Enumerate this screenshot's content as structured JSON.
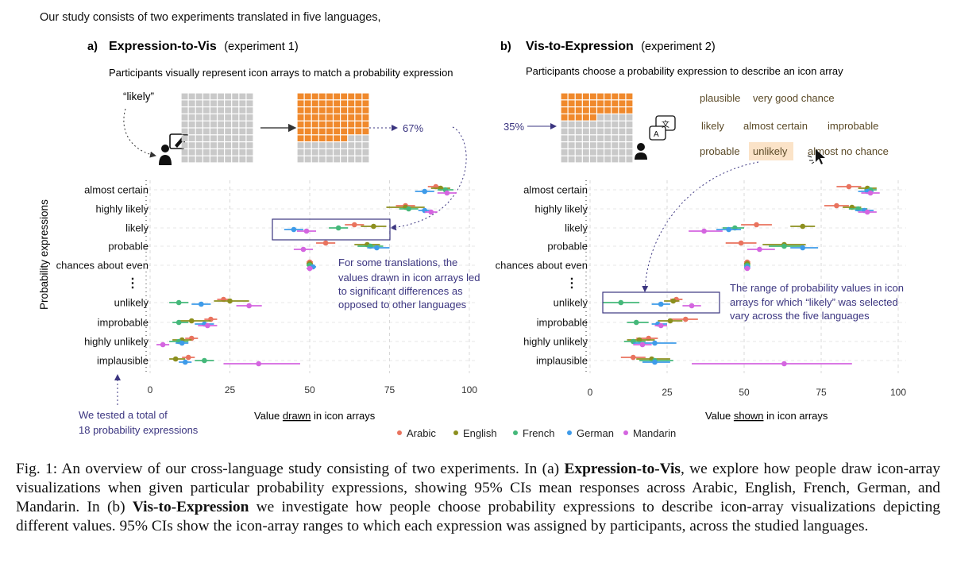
{
  "intro": "Our study consists of two experiments translated in five languages,",
  "colors": {
    "Arabic": "#e9735e",
    "English": "#8c8f1e",
    "French": "#45b87a",
    "German": "#3e9be9",
    "Mandarin": "#d465e0",
    "annotation": "#3b3580",
    "orange": "#f0892c",
    "gray": "#c9c9c9"
  },
  "panelA": {
    "letter": "a)",
    "title": "Expression-to-Vis",
    "subtitle": "(experiment 1)",
    "description": "Participants visually represent icon arrays to match a probability expression",
    "prompt": "“likely”",
    "result": "67%",
    "note": [
      "For some translations, the",
      "values drawn in icon arrays led",
      "to significant differences as",
      "opposed to other languages"
    ],
    "bottom_note": [
      "We tested a total of",
      "18 probability expressions"
    ],
    "xlabel_pre": "Value ",
    "xlabel_u": "drawn",
    "xlabel_post": " in icon arrays"
  },
  "panelB": {
    "letter": "b)",
    "title": "Vis-to-Expression",
    "subtitle": "(experiment 2)",
    "description": "Participants choose a probability expression to describe an icon array",
    "input": "35%",
    "words": [
      "plausible",
      "very good chance",
      "likely",
      "almost certain",
      "improbable",
      "probable",
      "unlikely",
      "almost no chance"
    ],
    "note": [
      "The range of probability values in icon",
      "arrays for which “likely” was selected",
      "vary across the five languages"
    ],
    "xlabel_pre": "Value ",
    "xlabel_u": "shown",
    "xlabel_post": " in icon arrays"
  },
  "ylabel": "Probability expressions",
  "legend": [
    "Arabic",
    "English",
    "French",
    "German",
    "Mandarin"
  ],
  "caption": {
    "p1": "Fig. 1: An overview of our cross-language study consisting of two experiments. In (a) ",
    "b1": "Expression-to-Vis",
    "p2": ", we explore how people draw icon-array visualizations when given particular probability expressions, showing 95% CIs mean responses across Arabic, English, French, German, and Mandarin. In (b) ",
    "b2": "Vis-to-Expression",
    "p3": " we investigate how people choose probability expressions to describe icon-array visualizations depicting different values. 95% CIs show the icon-array ranges to which each expression was assigned by participants, across the studied languages."
  },
  "chart_data": [
    {
      "type": "scatter",
      "title": "Expression-to-Vis",
      "xlabel": "Value drawn in icon arrays",
      "ylabel": "Probability expressions",
      "xlim": [
        0,
        100
      ],
      "xticks": [
        0,
        25,
        50,
        75,
        100
      ],
      "categories": [
        "almost certain",
        "highly likely",
        "likely",
        "probable",
        "chances about even",
        "⋮",
        "unlikely",
        "improbable",
        "highly unlikely",
        "implausible"
      ],
      "series": [
        {
          "name": "Arabic",
          "points": [
            [
              89.5,
              91,
              87
            ],
            [
              80,
              83,
              77
            ],
            [
              64,
              67,
              61
            ],
            [
              55,
              58,
              52
            ],
            [
              50,
              51,
              49
            ],
            null,
            [
              23,
              25,
              21
            ],
            [
              19,
              21,
              17
            ],
            [
              13,
              15,
              11
            ],
            [
              12,
              14,
              10
            ]
          ]
        },
        {
          "name": "English",
          "points": [
            [
              91,
              94,
              88
            ],
            [
              80,
              86,
              74
            ],
            [
              70,
              74,
              66
            ],
            [
              68,
              72,
              64
            ],
            [
              50,
              51,
              49
            ],
            null,
            [
              25,
              31,
              20
            ],
            [
              13,
              19,
              9
            ],
            [
              10,
              13,
              7
            ],
            [
              8,
              11,
              6
            ]
          ]
        },
        {
          "name": "French",
          "points": [
            [
              92.5,
              95,
              90
            ],
            [
              81,
              84,
              78
            ],
            [
              59,
              62,
              56
            ],
            [
              69,
              73,
              65
            ],
            [
              50,
              51,
              49
            ],
            null,
            [
              9,
              12,
              6
            ],
            [
              9,
              12,
              7
            ],
            [
              9,
              12,
              6
            ],
            [
              17,
              20,
              14
            ]
          ]
        },
        {
          "name": "German",
          "points": [
            [
              86,
              89,
              83
            ],
            [
              86,
              88,
              84
            ],
            [
              45,
              48,
              42
            ],
            [
              71,
              75,
              68
            ],
            [
              51,
              52,
              50
            ],
            null,
            [
              16,
              19,
              13
            ],
            [
              17,
              20,
              14
            ],
            [
              10,
              12,
              8
            ],
            [
              11,
              13,
              9
            ]
          ]
        },
        {
          "name": "Mandarin",
          "points": [
            [
              93,
              96,
              90
            ],
            [
              88,
              90,
              86
            ],
            [
              49,
              52,
              46
            ],
            [
              48,
              51,
              45
            ],
            [
              50,
              51,
              49
            ],
            null,
            [
              31,
              35,
              27
            ],
            [
              18,
              21,
              15
            ],
            [
              4,
              6,
              2
            ],
            [
              34,
              47,
              23
            ]
          ]
        }
      ]
    },
    {
      "type": "scatter",
      "title": "Vis-to-Expression",
      "xlabel": "Value shown in icon arrays",
      "ylabel": "Probability expressions",
      "xlim": [
        0,
        100
      ],
      "xticks": [
        0,
        25,
        50,
        75,
        100
      ],
      "categories": [
        "almost certain",
        "highly likely",
        "likely",
        "probable",
        "chances about even",
        "⋮",
        "unlikely",
        "improbable",
        "highly unlikely",
        "implausible"
      ],
      "series": [
        {
          "name": "Arabic",
          "points": [
            [
              84,
              88,
              80
            ],
            [
              80,
              84,
              76
            ],
            [
              54,
              59,
              49
            ],
            [
              49,
              54,
              44
            ],
            [
              51,
              52,
              50
            ],
            null,
            [
              28,
              30,
              26
            ],
            [
              31,
              35,
              26
            ],
            [
              19,
              22,
              15
            ],
            [
              14,
              18,
              10
            ]
          ]
        },
        {
          "name": "English",
          "points": [
            [
              90,
              93,
              87
            ],
            [
              85,
              88,
              82
            ],
            [
              69,
              73,
              65
            ],
            [
              63,
              70,
              56
            ],
            [
              51,
              52,
              50
            ],
            null,
            [
              27,
              29,
              24
            ],
            [
              26,
              30,
              22
            ],
            [
              16,
              21,
              12
            ],
            [
              20,
              26,
              15
            ]
          ]
        },
        {
          "name": "French",
          "points": [
            [
              91,
              93,
              89
            ],
            [
              87,
              90,
              84
            ],
            [
              47,
              50,
              43
            ],
            [
              63,
              69,
              58
            ],
            [
              51,
              52,
              50
            ],
            null,
            [
              10,
              16,
              4
            ],
            [
              15,
              19,
              12
            ],
            [
              14,
              18,
              11
            ],
            [
              21,
              27,
              16
            ]
          ]
        },
        {
          "name": "German",
          "points": [
            [
              90,
              92,
              87
            ],
            [
              89,
              92,
              86
            ],
            [
              45,
              49,
              41
            ],
            [
              69,
              74,
              65
            ],
            [
              51,
              52,
              50
            ],
            null,
            [
              23,
              26,
              20
            ],
            [
              22,
              25,
              20
            ],
            [
              21,
              28,
              14
            ],
            [
              21,
              26,
              17
            ]
          ]
        },
        {
          "name": "Mandarin",
          "points": [
            [
              91,
              94,
              88
            ],
            [
              90,
              93,
              87
            ],
            [
              37,
              43,
              32
            ],
            [
              55,
              60,
              51
            ],
            [
              51,
              52,
              50
            ],
            null,
            [
              33,
              36,
              30
            ],
            [
              23,
              25,
              21
            ],
            [
              17,
              20,
              14
            ],
            [
              63,
              85,
              33
            ]
          ]
        }
      ]
    }
  ]
}
